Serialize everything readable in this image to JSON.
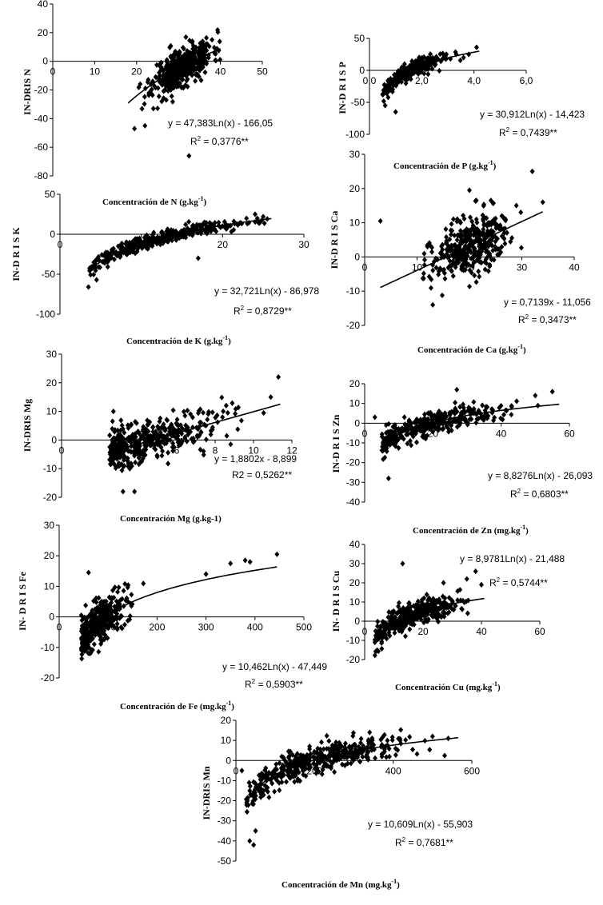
{
  "chart_data": [
    {
      "id": "N",
      "type": "scatter",
      "ylabel": "IN-DRIS N",
      "xlabel": "Concentración de N (g.kg",
      "xlabel_sup": "-1",
      "xlabel_end": ")",
      "xlim": [
        0,
        50
      ],
      "ylim": [
        -80,
        40
      ],
      "xticks": [
        0,
        10,
        20,
        30,
        40,
        50
      ],
      "yticks": [
        -80,
        -60,
        -40,
        -20,
        0,
        20,
        40
      ],
      "xtick_labels": [
        "0",
        "10",
        "20",
        "30",
        "40",
        "50"
      ],
      "ytick_labels": [
        "-80",
        "-60",
        "-40",
        "-20",
        "0",
        "20",
        "40"
      ],
      "trend": {
        "form": "log",
        "a": 47.383,
        "b": -166.05,
        "x_from": 18,
        "x_to": 40
      },
      "equation": "y = 47,383Ln(x) - 166,05",
      "r2_label": "R",
      "r2_value": " = 0,3776**",
      "points": {
        "seed": 11,
        "n": 420,
        "x_min": 18,
        "x_max": 40,
        "center": 31,
        "spread": 3.6,
        "noise": 7
      },
      "outliers": [
        [
          19.5,
          -47
        ],
        [
          22,
          -45
        ],
        [
          24,
          -33
        ],
        [
          26,
          -28
        ],
        [
          32.5,
          -66
        ],
        [
          38,
          15
        ],
        [
          28,
          10
        ]
      ]
    },
    {
      "id": "P",
      "type": "scatter",
      "ylabel": "IN-D R I S P",
      "xlabel": "Concentración de P (g.kg",
      "xlabel_sup": "-1",
      "xlabel_end": ")",
      "xlim": [
        0,
        6
      ],
      "ylim": [
        -100,
        50
      ],
      "xticks": [
        0,
        2,
        4,
        6
      ],
      "yticks": [
        -100,
        -50,
        0,
        50
      ],
      "xtick_labels": [
        "0,0",
        "2,0",
        "4,0",
        "6,0"
      ],
      "ytick_labels": [
        "-100",
        "-50",
        "0",
        "50"
      ],
      "trend": {
        "form": "log",
        "a": 30.912,
        "b": -14.423,
        "x_from": 0.5,
        "x_to": 4.2
      },
      "equation": "y = 30,912Ln(x) - 14,423",
      "r2_label": "R",
      "r2_value": " = 0,7439**",
      "points": {
        "seed": 23,
        "n": 360,
        "x_min": 0.5,
        "x_max": 4.2,
        "center": 1.6,
        "spread": 0.55,
        "noise": 6
      },
      "outliers": [
        [
          0.6,
          -55
        ],
        [
          1.0,
          -65
        ],
        [
          3.1,
          18
        ],
        [
          3.6,
          20
        ],
        [
          4.1,
          36
        ],
        [
          3.8,
          25
        ]
      ]
    },
    {
      "id": "K",
      "type": "scatter",
      "ylabel": "IN-D R I S K",
      "xlabel": "Concentración de K (g.kg",
      "xlabel_sup": "-1",
      "xlabel_end": ")",
      "xlim": [
        0,
        30
      ],
      "ylim": [
        -100,
        50
      ],
      "xticks": [
        0,
        10,
        20,
        30
      ],
      "yticks": [
        -100,
        -50,
        0,
        50
      ],
      "xtick_labels": [
        "0",
        "10",
        "20",
        "30"
      ],
      "ytick_labels": [
        "-100",
        "-50",
        "0",
        "50"
      ],
      "trend": {
        "form": "log",
        "a": 32.721,
        "b": -86.978,
        "x_from": 3.5,
        "x_to": 26
      },
      "equation": "y = 32,721Ln(x) - 86,978",
      "r2_label": "R",
      "r2_value": " = 0,8729**",
      "points": {
        "seed": 37,
        "n": 380,
        "x_min": 3.5,
        "x_max": 26,
        "center": 13,
        "spread": 5.0,
        "noise": 4
      },
      "outliers": [
        [
          3.5,
          -66
        ],
        [
          4.5,
          -57
        ],
        [
          17,
          -30
        ],
        [
          25,
          22
        ],
        [
          24,
          25
        ]
      ]
    },
    {
      "id": "Ca",
      "type": "scatter",
      "ylabel": "IN-D R I S Ca",
      "xlabel": "Concentración de Ca (g.kg",
      "xlabel_sup": "-1",
      "xlabel_end": ")",
      "xlim": [
        0,
        40
      ],
      "ylim": [
        -20,
        30
      ],
      "xticks": [
        0,
        10,
        20,
        30,
        40
      ],
      "yticks": [
        -20,
        -10,
        0,
        10,
        20,
        30
      ],
      "xtick_labels": [
        "0",
        "10",
        "20",
        "30",
        "40"
      ],
      "ytick_labels": [
        "-20",
        "-10",
        "0",
        "10",
        "20",
        "30"
      ],
      "trend": {
        "form": "linear",
        "a": 0.7139,
        "b": -11.056,
        "x_from": 3,
        "x_to": 34
      },
      "equation": "y = 0,7139x - 11,056",
      "r2_label": "R",
      "r2_value": " = 0,3473**",
      "points": {
        "seed": 53,
        "n": 380,
        "x_min": 11,
        "x_max": 33,
        "center": 20,
        "spread": 4.0,
        "noise": 4.5
      },
      "outliers": [
        [
          3,
          10.5
        ],
        [
          20,
          19.5
        ],
        [
          32,
          25
        ],
        [
          34,
          16
        ],
        [
          13,
          -14
        ]
      ]
    },
    {
      "id": "Mg",
      "type": "scatter",
      "ylabel": "IN-DRIS Mg",
      "xlabel": "Concentración Mg (g.kg-1)",
      "xlabel_sup": "",
      "xlabel_end": "",
      "xlim": [
        0,
        12
      ],
      "ylim": [
        -20,
        30
      ],
      "xticks": [
        0,
        6,
        8,
        10,
        12
      ],
      "yticks": [
        -20,
        -10,
        0,
        10,
        20,
        30
      ],
      "xtick_labels": [
        "0",
        "6",
        "8",
        "10",
        "12"
      ],
      "ytick_labels": [
        "-20",
        "-10",
        "0",
        "10",
        "20",
        "30"
      ],
      "trend": {
        "form": "linear",
        "a": 1.8802,
        "b": -8.899,
        "x_from": 2.5,
        "x_to": 11.4
      },
      "equation": "y = 1,8802x - 8,899",
      "r2_label": "R2",
      "r2_value": " = 0,5262**",
      "points": {
        "seed": 71,
        "n": 420,
        "x_min": 2.5,
        "x_max": 11.4,
        "center": 4.5,
        "spread": 2.0,
        "noise": 3.6
      },
      "outliers": [
        [
          2.7,
          10
        ],
        [
          11.3,
          22
        ],
        [
          10.9,
          15
        ],
        [
          3.2,
          -18
        ],
        [
          3.8,
          -18
        ]
      ]
    },
    {
      "id": "Zn",
      "type": "scatter",
      "ylabel": "IN-D R I S Zn",
      "xlabel": "Concentración de Zn (mg.kg",
      "xlabel_sup": "-1",
      "xlabel_end": ")",
      "xlim": [
        0,
        60
      ],
      "ylim": [
        -40,
        20
      ],
      "xticks": [
        0,
        20,
        40,
        60
      ],
      "yticks": [
        -40,
        -30,
        -20,
        -10,
        0,
        10,
        20
      ],
      "xtick_labels": [
        "0",
        "20",
        "40",
        "60"
      ],
      "ytick_labels": [
        "-40",
        "-30",
        "-20",
        "-10",
        "0",
        "10",
        "20"
      ],
      "trend": {
        "form": "log",
        "a": 8.8276,
        "b": -26.093,
        "x_from": 6,
        "x_to": 57
      },
      "equation": "y = 8,8276Ln(x) - 26,093",
      "r2_label": "R",
      "r2_value": " = 0,6803**",
      "points": {
        "seed": 89,
        "n": 380,
        "x_min": 5,
        "x_max": 57,
        "center": 18,
        "spread": 12,
        "noise": 2.8
      },
      "outliers": [
        [
          3,
          3
        ],
        [
          7,
          -28
        ],
        [
          27,
          17
        ],
        [
          55,
          16
        ],
        [
          50,
          14
        ]
      ]
    },
    {
      "id": "Fe",
      "type": "scatter",
      "ylabel": "IN- D R I S Fe",
      "xlabel": "Concentración de Fe (mg.kg",
      "xlabel_sup": "-1",
      "xlabel_end": ")",
      "xlim": [
        0,
        500
      ],
      "ylim": [
        -20,
        30
      ],
      "xticks": [
        0,
        100,
        200,
        300,
        400,
        500
      ],
      "yticks": [
        -20,
        -10,
        0,
        10,
        20,
        30
      ],
      "xtick_labels": [
        "0",
        "100",
        "200",
        "300",
        "400",
        "500"
      ],
      "ytick_labels": [
        "-20",
        "-10",
        "0",
        "10",
        "20",
        "30"
      ],
      "trend": {
        "form": "log",
        "a": 10.462,
        "b": -47.449,
        "x_from": 45,
        "x_to": 445
      },
      "equation": "y = 10,462Ln(x) - 47,449",
      "r2_label": "R",
      "r2_value": " = 0,5903**",
      "points": {
        "seed": 97,
        "n": 400,
        "x_min": 45,
        "x_max": 200,
        "center": 80,
        "spread": 30,
        "noise": 3.4
      },
      "outliers": [
        [
          60,
          14.5
        ],
        [
          350,
          17.5
        ],
        [
          380,
          18.5
        ],
        [
          390,
          18
        ],
        [
          445,
          20.5
        ],
        [
          300,
          14
        ],
        [
          62,
          -12
        ]
      ]
    },
    {
      "id": "Cu",
      "type": "scatter",
      "ylabel": "IN- D R I S Cu",
      "xlabel": "Concentración Cu (mg.kg",
      "xlabel_sup": "-1",
      "xlabel_end": ")",
      "xlim": [
        0,
        60
      ],
      "ylim": [
        -20,
        40
      ],
      "xticks": [
        0,
        20,
        40,
        60
      ],
      "yticks": [
        -20,
        -10,
        0,
        10,
        20,
        30,
        40
      ],
      "xtick_labels": [
        "0",
        "20",
        "40",
        "60"
      ],
      "ytick_labels": [
        "-20",
        "-10",
        "0",
        "10",
        "20",
        "30",
        "40"
      ],
      "trend": {
        "form": "log",
        "a": 8.9781,
        "b": -21.488,
        "x_from": 3.5,
        "x_to": 41
      },
      "equation": "y = 8,9781Ln(x) - 21,488",
      "r2_label": "R",
      "r2_value": " = 0,5744**",
      "points": {
        "seed": 113,
        "n": 400,
        "x_min": 3.5,
        "x_max": 40,
        "center": 16,
        "spread": 8,
        "noise": 3.2
      },
      "outliers": [
        [
          13,
          30
        ],
        [
          35,
          22
        ],
        [
          38,
          26
        ],
        [
          40,
          19
        ],
        [
          27,
          20
        ]
      ]
    },
    {
      "id": "Mn",
      "type": "scatter",
      "ylabel": "IN-DRIS Mn",
      "xlabel": "Concentración de Mn (mg.kg",
      "xlabel_sup": "-1",
      "xlabel_end": ")",
      "xlim": [
        0,
        600
      ],
      "ylim": [
        -50,
        20
      ],
      "xticks": [
        0,
        200,
        400,
        600
      ],
      "yticks": [
        -50,
        -40,
        -30,
        -20,
        -10,
        0,
        10,
        20
      ],
      "xtick_labels": [
        "0",
        "200",
        "400",
        "600"
      ],
      "ytick_labels": [
        "-50",
        "-40",
        "-30",
        "-20",
        "-10",
        "0",
        "10",
        "20"
      ],
      "trend": {
        "form": "log",
        "a": 10.609,
        "b": -55.903,
        "x_from": 30,
        "x_to": 565
      },
      "equation": "y = 10,609Ln(x) - 55,903",
      "r2_label": "R",
      "r2_value": " = 0,7681**",
      "points": {
        "seed": 131,
        "n": 440,
        "x_min": 25,
        "x_max": 560,
        "center": 200,
        "spread": 120,
        "noise": 3.4
      },
      "outliers": [
        [
          35,
          -40
        ],
        [
          45,
          -42
        ],
        [
          50,
          -35
        ],
        [
          15,
          -5
        ],
        [
          500,
          12
        ],
        [
          540,
          11
        ]
      ]
    }
  ]
}
